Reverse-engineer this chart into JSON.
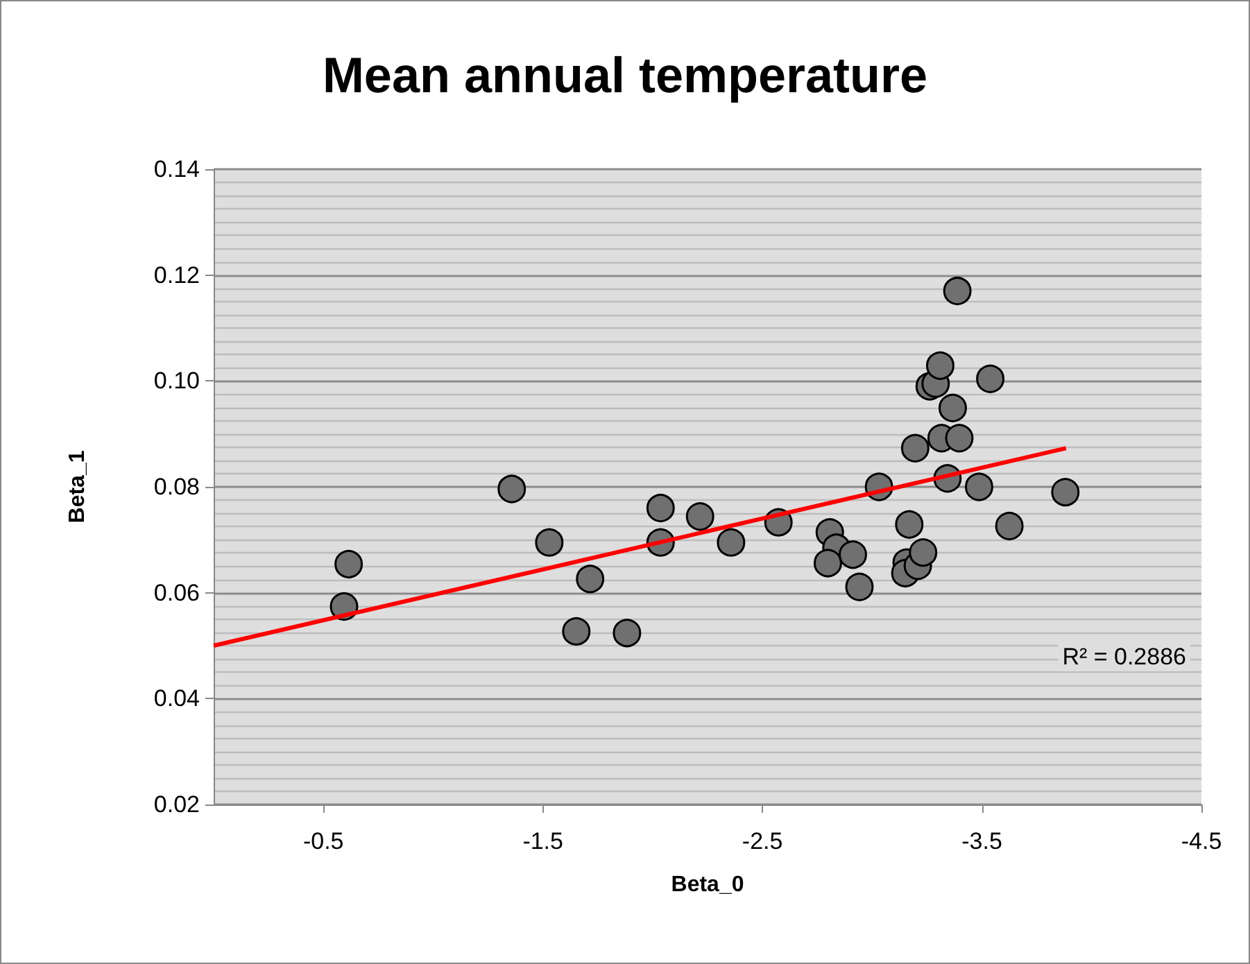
{
  "chart_data": {
    "type": "scatter",
    "title": "Mean annual temperature",
    "xlabel": "Beta_0",
    "ylabel": "Beta_1",
    "xlim": [
      0,
      -4.5
    ],
    "xticks": [
      -0.5,
      -1.5,
      -2.5,
      -3.5,
      -4.5
    ],
    "ylim": [
      0.02,
      0.14
    ],
    "yticks": [
      0.02,
      0.04,
      0.06,
      0.08,
      {
        "value": 0.1,
        "label": "0.10"
      },
      0.12,
      0.14
    ],
    "grid": "y",
    "annotations": [
      "R² = 0.2886"
    ],
    "series": [
      {
        "color": "#707070",
        "marker": "circle",
        "x": [
          -0.615,
          -0.594,
          -1.358,
          -1.529,
          -1.715,
          -1.652,
          -1.883,
          -2.036,
          -2.036,
          -2.216,
          -2.357,
          -2.573,
          -2.807,
          -2.837,
          -2.798,
          -2.912,
          -2.942,
          -3.031,
          -3.169,
          -3.157,
          -3.151,
          -3.208,
          -3.232,
          -3.196,
          -3.343,
          -3.316,
          -3.397,
          -3.367,
          -3.262,
          -3.289,
          -3.31,
          -3.388,
          -3.538,
          -3.487,
          -3.625,
          -3.88
        ],
        "values": [
          0.0654,
          0.0574,
          0.0796,
          0.0695,
          0.0626,
          0.0527,
          0.0524,
          0.076,
          0.0695,
          0.0744,
          0.0695,
          0.0733,
          0.0714,
          0.0685,
          0.0656,
          0.0672,
          0.0611,
          0.08,
          0.0729,
          0.0657,
          0.0637,
          0.0651,
          0.0676,
          0.0873,
          0.0816,
          0.0892,
          0.0892,
          0.0949,
          0.099,
          0.0995,
          0.1029,
          0.117,
          0.1004,
          0.08,
          0.0726,
          0.079
        ]
      },
      {
        "type": "line",
        "marker": "none",
        "color": "#ff0000",
        "x": [
          0,
          -3.883
        ],
        "values": [
          0.05,
          0.0873
        ]
      }
    ]
  }
}
